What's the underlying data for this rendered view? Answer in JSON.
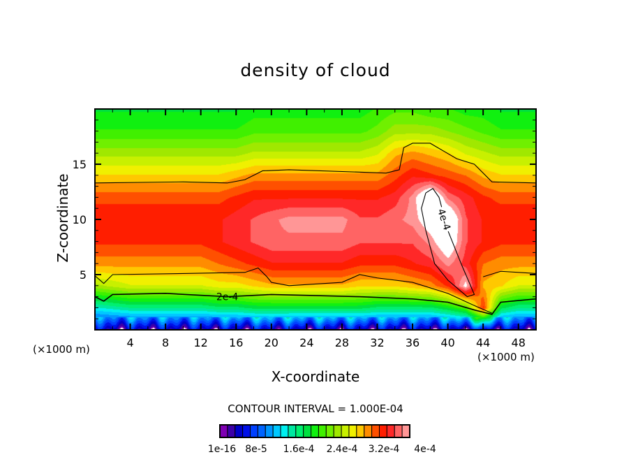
{
  "chart_data": {
    "type": "heatmap",
    "title": "density of cloud",
    "xlabel": "X-coordinate",
    "ylabel": "Z-coordinate",
    "x_unit": "(×1000 m)",
    "z_unit": "(×1000 m)",
    "xlim": [
      0,
      50
    ],
    "ylim": [
      0,
      20
    ],
    "xticks": [
      "4",
      "8",
      "12",
      "16",
      "20",
      "24",
      "28",
      "32",
      "36",
      "40",
      "44",
      "48"
    ],
    "xtick_values": [
      4,
      8,
      12,
      16,
      20,
      24,
      28,
      32,
      36,
      40,
      44,
      48
    ],
    "yticks": [
      "5",
      "10",
      "15"
    ],
    "ytick_values": [
      5,
      10,
      15
    ],
    "contour_interval_text": "CONTOUR INTERVAL = 1.000E-04",
    "grid_note": "values in 1e-5 units; columns x=0..50 step 2, rows z=0..20 step 2",
    "grid": [
      [
        3,
        14,
        25,
        31,
        34,
        35,
        33,
        29,
        25,
        21,
        19
      ],
      [
        3,
        15,
        26,
        31,
        34,
        35,
        33,
        29,
        25,
        21,
        19
      ],
      [
        3,
        16,
        27,
        31,
        34,
        35,
        33,
        29,
        25,
        21,
        19
      ],
      [
        3,
        16,
        27,
        31,
        34,
        35,
        33,
        29,
        25,
        21,
        19
      ],
      [
        3,
        16,
        27,
        31,
        34,
        35,
        33,
        29,
        25,
        21,
        19
      ],
      [
        3,
        16,
        27,
        31,
        34,
        35,
        33,
        29,
        25,
        21,
        19
      ],
      [
        3,
        16,
        27,
        31,
        34,
        35,
        33,
        29,
        25,
        21,
        19
      ],
      [
        3,
        17,
        28,
        32,
        35,
        35,
        33,
        29,
        25,
        21,
        19
      ],
      [
        3,
        17,
        28,
        33,
        36,
        36,
        34,
        30,
        25,
        21,
        19
      ],
      [
        3,
        18,
        29,
        34,
        37,
        37,
        35,
        31,
        26,
        22,
        20
      ],
      [
        4,
        18,
        30,
        35,
        38,
        38,
        35,
        31,
        26,
        22,
        20
      ],
      [
        3,
        18,
        30,
        35,
        38,
        39,
        35,
        31,
        26,
        22,
        20
      ],
      [
        3,
        18,
        30,
        35,
        38,
        39,
        35,
        31,
        26,
        22,
        20
      ],
      [
        3,
        18,
        30,
        35,
        38,
        39,
        35,
        31,
        26,
        22,
        20
      ],
      [
        3,
        18,
        30,
        35,
        38,
        39,
        35,
        31,
        26,
        22,
        20
      ],
      [
        3,
        18,
        29,
        34,
        37,
        37,
        35,
        31,
        26,
        22,
        20
      ],
      [
        3,
        17,
        29,
        34,
        37,
        37,
        35,
        31,
        27,
        23,
        21
      ],
      [
        3,
        17,
        29,
        34,
        37,
        38,
        36,
        33,
        30,
        25,
        22
      ],
      [
        3,
        17,
        30,
        35,
        37,
        39,
        39,
        35,
        31,
        25,
        22
      ],
      [
        3,
        17,
        31,
        36,
        39,
        42,
        45,
        34,
        30,
        25,
        21
      ],
      [
        3,
        19,
        34,
        39,
        43,
        44,
        38,
        33,
        29,
        24,
        21
      ],
      [
        3,
        22,
        41,
        36,
        37,
        37,
        36,
        32,
        27,
        23,
        20
      ],
      [
        4,
        34,
        30,
        32,
        35,
        35,
        34,
        30,
        26,
        22,
        20
      ],
      [
        3,
        18,
        29,
        31,
        34,
        35,
        33,
        29,
        25,
        21,
        19
      ],
      [
        3,
        16,
        27,
        31,
        34,
        35,
        33,
        29,
        25,
        21,
        19
      ],
      [
        3,
        16,
        27,
        31,
        34,
        35,
        33,
        29,
        25,
        21,
        19
      ]
    ],
    "levels_max": 40,
    "colors": [
      "#7f00b3",
      "#3c00a8",
      "#0000c8",
      "#0010e8",
      "#0040ff",
      "#0064ff",
      "#0096ff",
      "#00c8ff",
      "#00f0f0",
      "#00e8a0",
      "#00f070",
      "#00e040",
      "#10f010",
      "#40f000",
      "#70f000",
      "#a0e800",
      "#c8f000",
      "#f0f000",
      "#ffc800",
      "#ff8c00",
      "#ff5000",
      "#ff1e00",
      "#ff2828",
      "#ff6464",
      "#ff9696"
    ],
    "colorbar_labels": [
      "1e-16",
      "8e-5",
      "1.6e-4",
      "2.4e-4",
      "3.2e-4",
      "4e-4"
    ],
    "contours": [
      {
        "label": "",
        "points": [
          [
            0,
            13.3
          ],
          [
            10,
            13.4
          ],
          [
            15,
            13.3
          ],
          [
            17,
            13.6
          ],
          [
            19,
            14.4
          ],
          [
            22,
            14.5
          ],
          [
            33,
            14.2
          ],
          [
            34.5,
            14.5
          ],
          [
            35,
            16.5
          ],
          [
            36,
            16.9
          ],
          [
            38,
            16.9
          ],
          [
            41,
            15.5
          ],
          [
            43,
            15
          ],
          [
            45,
            13.4
          ],
          [
            50,
            13.3
          ]
        ]
      },
      {
        "label": "",
        "points": [
          [
            0,
            4.9
          ],
          [
            1,
            4.2
          ],
          [
            2,
            5
          ],
          [
            10,
            5.1
          ],
          [
            17,
            5.2
          ],
          [
            18.5,
            5.6
          ],
          [
            19.5,
            4.8
          ],
          [
            20,
            4.3
          ],
          [
            22,
            4
          ],
          [
            28,
            4.3
          ],
          [
            30,
            5
          ],
          [
            32,
            4.7
          ],
          [
            36,
            4.3
          ],
          [
            40,
            3.3
          ],
          [
            43,
            2.2
          ],
          [
            45,
            1.5
          ]
        ]
      },
      {
        "label": "",
        "points": [
          [
            44,
            4.8
          ],
          [
            46,
            5.3
          ],
          [
            50,
            5.1
          ]
        ]
      },
      {
        "label": "2e-4",
        "at": [
          15,
          3
        ],
        "points": [
          [
            0,
            3
          ],
          [
            1,
            2.6
          ],
          [
            2,
            3.2
          ],
          [
            8,
            3.3
          ],
          [
            15,
            3.0
          ],
          [
            20,
            3.2
          ],
          [
            30,
            3.0
          ],
          [
            36,
            2.8
          ],
          [
            40,
            2.5
          ],
          [
            43,
            1.8
          ],
          [
            45,
            1.4
          ],
          [
            46,
            2.5
          ],
          [
            50,
            2.8
          ]
        ]
      },
      {
        "label": "4e-4",
        "at": [
          39.6,
          10
        ],
        "points": [
          [
            37.5,
            12.4
          ],
          [
            38.3,
            12.8
          ],
          [
            39,
            12
          ],
          [
            40,
            9
          ],
          [
            41.5,
            6
          ],
          [
            43,
            3.2
          ],
          [
            42.2,
            3
          ],
          [
            40,
            4.5
          ],
          [
            38.5,
            6
          ],
          [
            37.5,
            9
          ],
          [
            37,
            11
          ],
          [
            37.5,
            12.4
          ]
        ]
      }
    ]
  }
}
